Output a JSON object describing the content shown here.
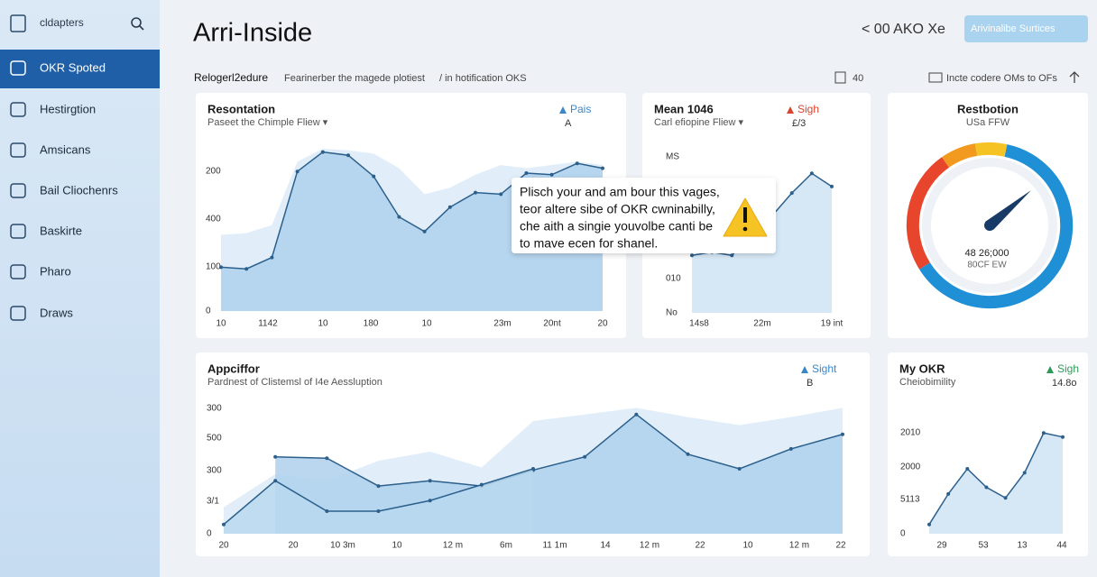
{
  "sidebar": {
    "search_placeholder": "cldapters",
    "nav": [
      {
        "label": "OKR Spoted",
        "active": true
      },
      {
        "label": "Hestirgtion",
        "active": false
      },
      {
        "label": "Amsicans",
        "active": false
      },
      {
        "label": "Bail Cliochenrs",
        "active": false
      },
      {
        "label": "Baskirte",
        "active": false
      },
      {
        "label": "Pharo",
        "active": false
      },
      {
        "label": "Draws",
        "active": false
      }
    ]
  },
  "header": {
    "title": "Arri-Inside",
    "status": "< 00 AKO Xe",
    "button": "Arivinalibe Surtices"
  },
  "toolbar": {
    "title": "Relogerl2edure",
    "subtitle": "Fearinerber the magede plotiest",
    "breadcrumb": "/ in hotification OKS",
    "count": "40",
    "action": "Incte codere OMs to OFs"
  },
  "panels": [
    {
      "type": "line",
      "title": "Resontation",
      "subtitle": "Paseet the Chimple Fliew ▾",
      "legend": {
        "label": "Pais",
        "sub": "A",
        "color": "#3a87c8"
      },
      "y_labels": [
        "0",
        "100",
        "400",
        "200"
      ],
      "x_labels": [
        "10",
        "1142",
        "10",
        "180",
        "10",
        "23m",
        "20nt",
        "20"
      ],
      "ylim": [
        0,
        100
      ],
      "series": [
        {
          "fill": "#dcebf8",
          "values": [
            47,
            48,
            53,
            92,
            100,
            99,
            97,
            88,
            72,
            76,
            84,
            90,
            88,
            90,
            92,
            90
          ]
        },
        {
          "color": "#2b5f8c",
          "fill": "#aed0ec",
          "values": [
            27,
            26,
            33,
            86,
            98,
            96,
            83,
            58,
            49,
            64,
            73,
            72,
            85,
            84,
            91,
            88
          ]
        }
      ]
    },
    {
      "type": "line",
      "title": "Mean 1046",
      "subtitle": "Carl efiopine Fliew ▾",
      "legend": {
        "label": "Sigh",
        "sub": "£/3",
        "color": "#d9442e"
      },
      "y_labels": [
        "MS",
        "010",
        "No"
      ],
      "x_labels": [
        "14s8",
        "22m",
        "19 int"
      ],
      "ylim": [
        0,
        100
      ],
      "series": [
        {
          "color": "#2b5f8c",
          "fill": "#cfe4f5",
          "values": [
            35,
            37,
            35,
            48,
            59,
            73,
            85,
            77
          ]
        }
      ]
    },
    {
      "type": "gauge",
      "title": "Restbotion",
      "subtitle": "USa FFW",
      "center_value": "48 26;000",
      "center_label": "80CF EW"
    },
    {
      "type": "line",
      "title": "Appciffor",
      "subtitle": "Pardnest of Clistemsl of I4e Aessluption",
      "legend": {
        "label": "Sight",
        "sub": "B",
        "color": "#3a87c8"
      },
      "y_labels": [
        "300",
        "500",
        "300",
        "3/1",
        "0"
      ],
      "x_labels": [
        "20",
        "20",
        "10 3m",
        "10",
        "12 m",
        "6m",
        "11 1m",
        "14",
        "12 m",
        "22",
        "10",
        "12 m",
        "22"
      ],
      "ylim": [
        0,
        100
      ],
      "series": [
        {
          "fill": "#dcebf8",
          "values": [
            20,
            45,
            40,
            55,
            62,
            50,
            85,
            90,
            95,
            88,
            82,
            88,
            95
          ]
        },
        {
          "color": "#2b5f8c",
          "fill": "#aed0ec",
          "values": [
            null,
            58,
            57,
            36,
            40,
            36,
            48,
            58,
            90,
            60,
            49,
            64,
            75
          ]
        },
        {
          "color": "#2b5f8c",
          "fill": "#b9d8ef",
          "values": [
            7,
            40,
            17,
            17,
            25,
            37,
            49,
            null,
            null,
            null,
            null,
            null,
            null
          ]
        }
      ]
    },
    {
      "type": "line",
      "title": "My OKR",
      "subtitle": "Cheiobimility",
      "legend": {
        "label": "Sigh",
        "sub": "14.8o",
        "color": "#2e9a5a"
      },
      "y_labels": [
        "2010",
        "2000",
        "5113",
        "0"
      ],
      "x_labels": [
        "29",
        "53",
        "13",
        "44"
      ],
      "ylim": [
        0,
        100
      ],
      "series": [
        {
          "color": "#2b5f8c",
          "fill": "#cfe4f5",
          "values": [
            7,
            30,
            49,
            35,
            27,
            46,
            76,
            73
          ]
        }
      ]
    }
  ],
  "tooltip": {
    "lines": [
      "Plisch your and am bour this vages,",
      "teor altere sibe of OKR cwninabilly,",
      "che aith a singie youvolbe canti be",
      "to mave ecen for shanel."
    ]
  }
}
